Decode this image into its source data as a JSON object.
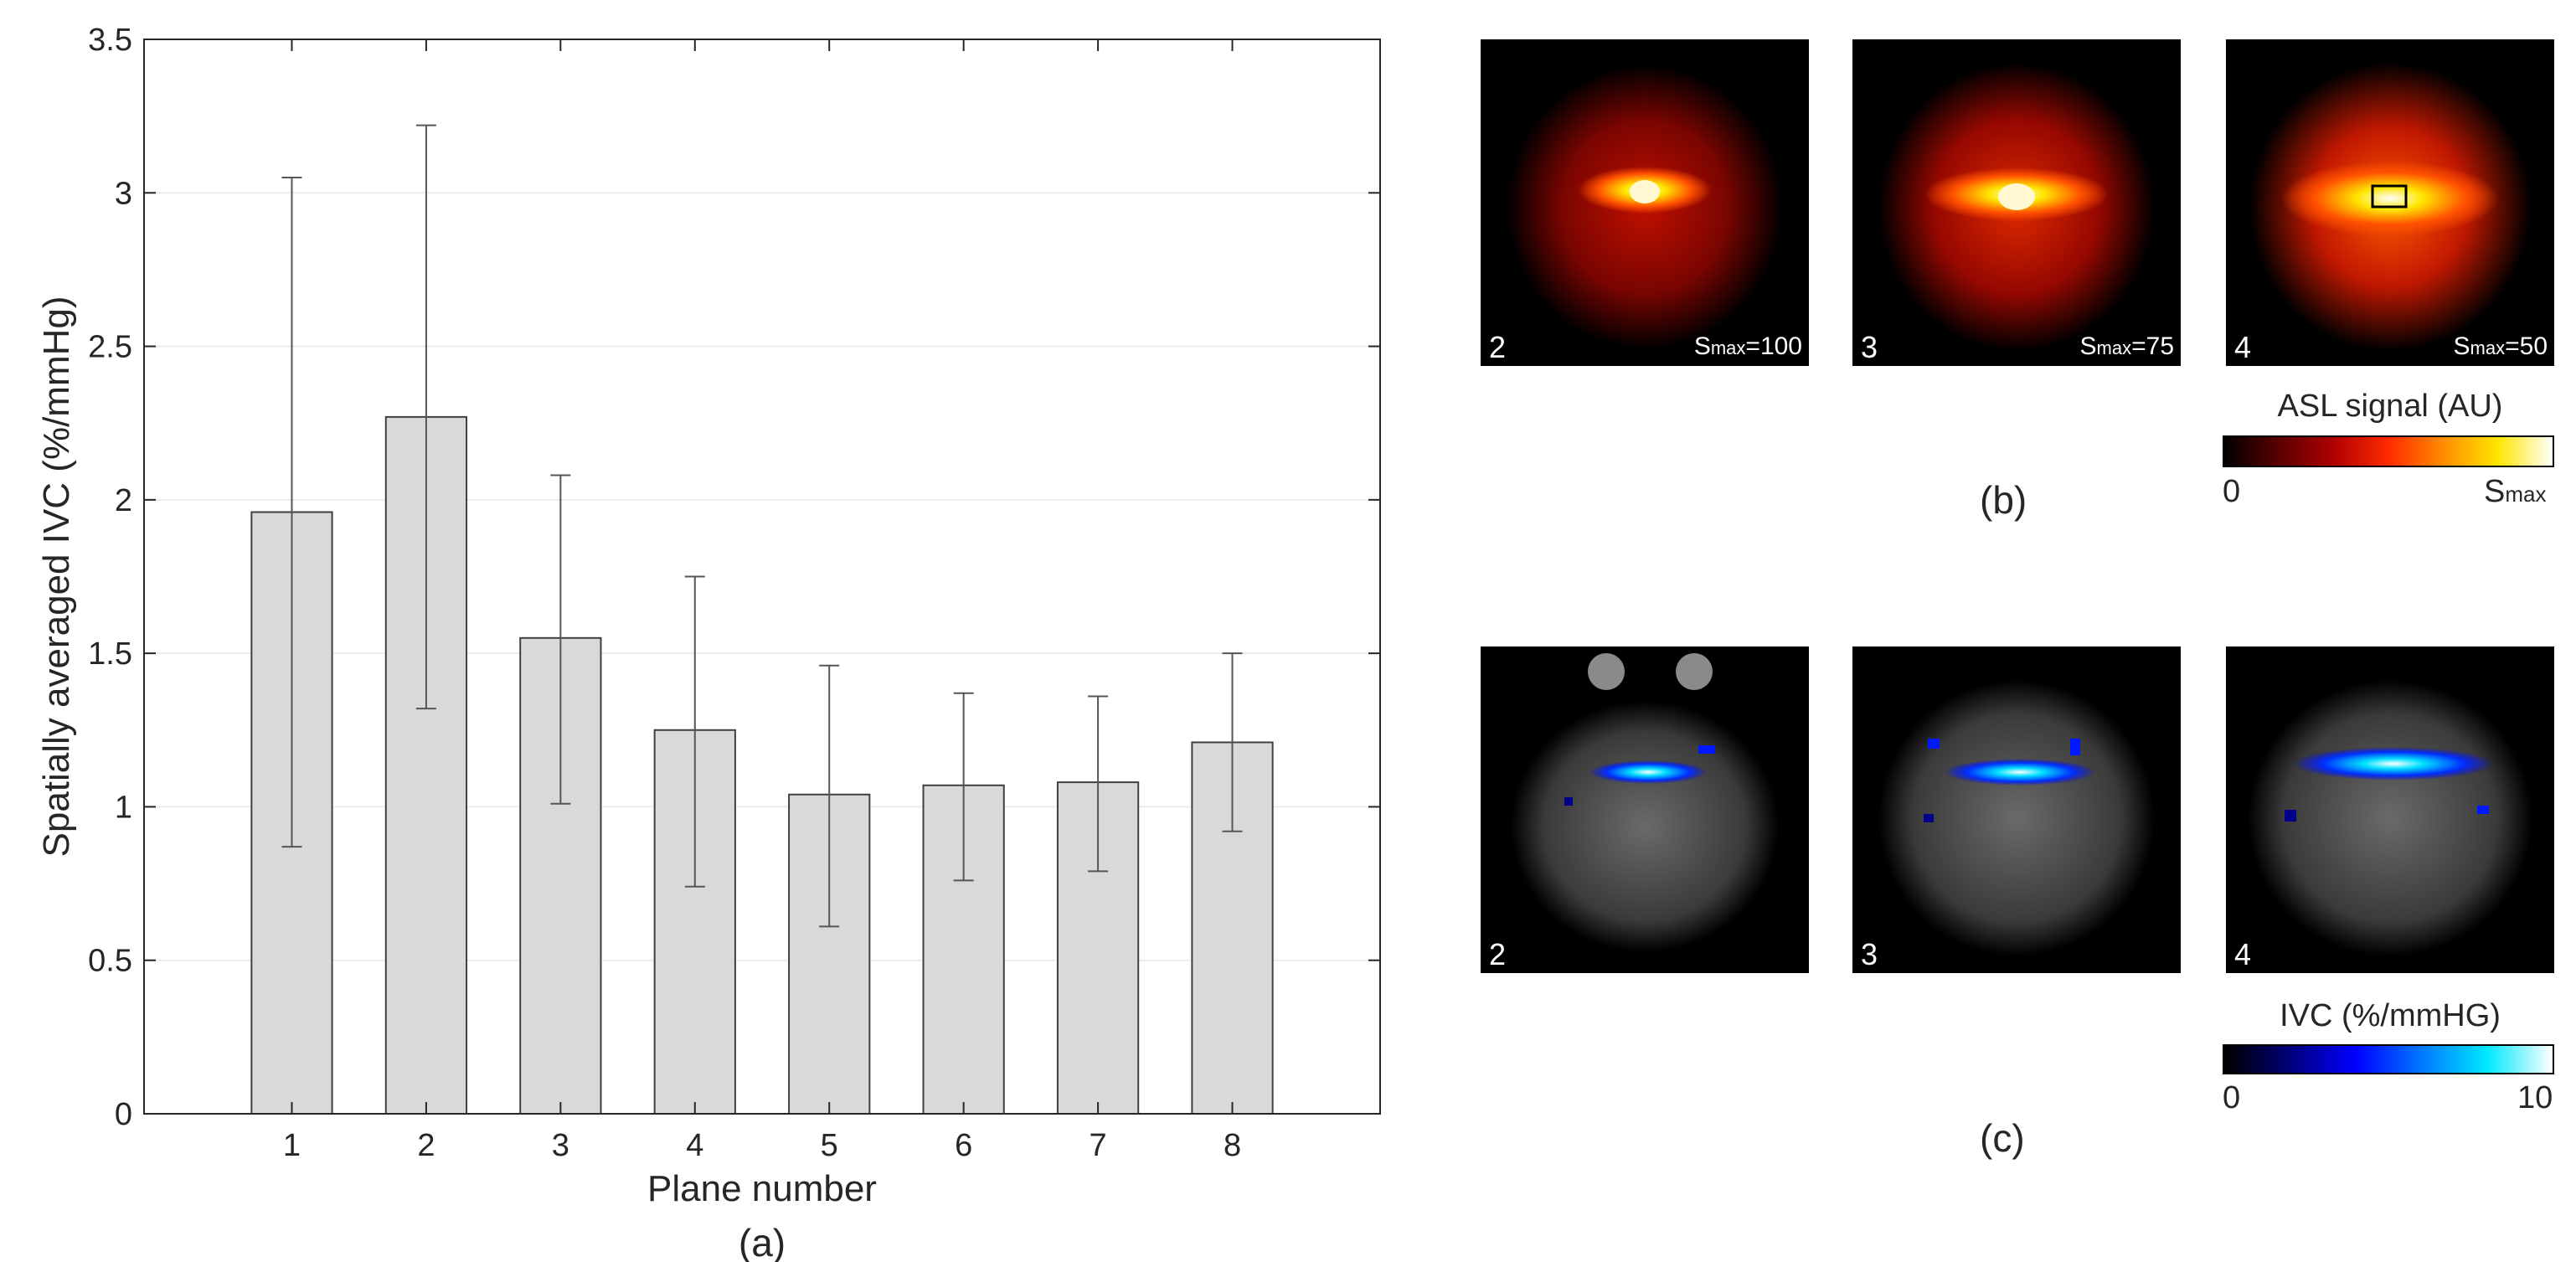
{
  "chart_data": {
    "type": "bar",
    "categories": [
      "1",
      "2",
      "3",
      "4",
      "5",
      "6",
      "7",
      "8"
    ],
    "values": [
      1.96,
      2.27,
      1.55,
      1.25,
      1.04,
      1.07,
      1.08,
      1.21
    ],
    "err_low": [
      0.87,
      1.32,
      1.01,
      0.74,
      0.61,
      0.76,
      0.79,
      0.92
    ],
    "err_high": [
      3.05,
      3.22,
      2.08,
      1.75,
      1.46,
      1.37,
      1.36,
      1.5
    ],
    "xlabel": "Plane number",
    "ylabel": "Spatially averaged  IVC (%/mmHg)",
    "ylim": [
      0,
      3.5
    ],
    "xlim": [
      -0.1,
      9.1
    ],
    "yticks": [
      "0",
      "0.5",
      "1",
      "1.5",
      "2",
      "2.5",
      "3",
      "3.5"
    ],
    "grid": true,
    "caption": "(a)"
  },
  "panel_b": {
    "caption": "(b)",
    "images": [
      {
        "plane": "2",
        "smax": "=100"
      },
      {
        "plane": "3",
        "smax": "=75"
      },
      {
        "plane": "4",
        "smax": "=50"
      }
    ],
    "smax_symbol": "S",
    "smax_sub": "max",
    "colorbar": {
      "title": "ASL signal (AU)",
      "min_label": "0",
      "max_label": "S",
      "max_sub": "max",
      "colors": [
        "#000000",
        "#5a0000",
        "#b00000",
        "#ff2a00",
        "#ff8c00",
        "#ffe600",
        "#ffffff"
      ]
    }
  },
  "panel_c": {
    "caption": "(c)",
    "images": [
      {
        "plane": "2"
      },
      {
        "plane": "3"
      },
      {
        "plane": "4"
      }
    ],
    "colorbar": {
      "title": "IVC (%/mmHG)",
      "min_label": "0",
      "max_label": "10",
      "colors": [
        "#000000",
        "#00007a",
        "#0000ff",
        "#0078ff",
        "#00e8ff",
        "#ffffff"
      ]
    }
  },
  "colors": {
    "bar_fill": "#d9d9d9",
    "bar_edge": "#404040",
    "axis": "#262626",
    "grid": "#ececec"
  }
}
